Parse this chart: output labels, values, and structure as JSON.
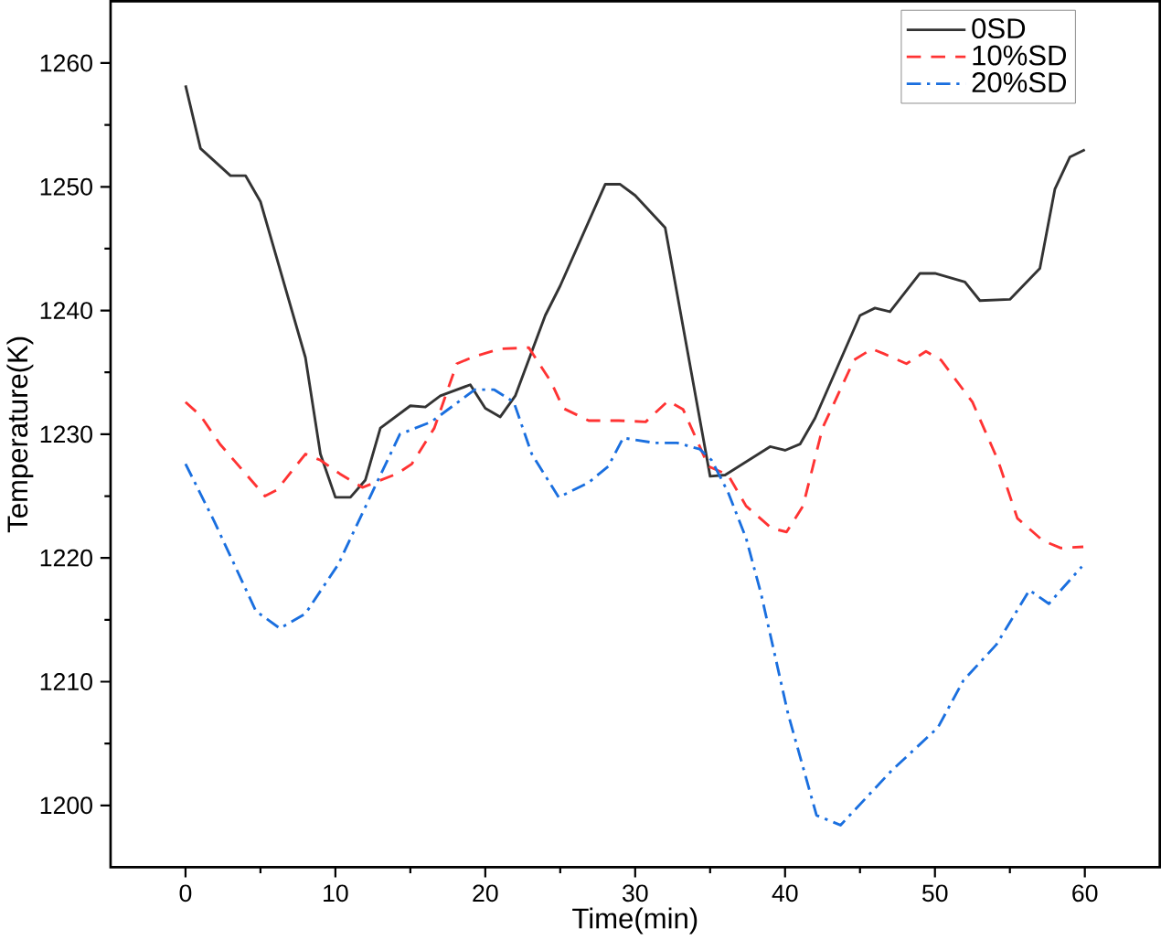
{
  "chart_data": {
    "type": "line",
    "xlabel": "Time(min)",
    "ylabel": "Temperature(K)",
    "xlim": [
      -5,
      65
    ],
    "ylim": [
      1195,
      1265
    ],
    "xticks": [
      0,
      10,
      20,
      30,
      40,
      50,
      60
    ],
    "yticks": [
      1200,
      1210,
      1220,
      1230,
      1240,
      1250,
      1260
    ],
    "grid": false,
    "legend": "top right",
    "series": [
      {
        "name": "0SD",
        "color": "#333333",
        "line_style": "solid",
        "x": [
          0,
          1,
          3,
          4,
          5,
          8,
          9,
          10,
          11,
          12,
          13,
          15,
          16,
          17,
          19,
          20,
          21,
          22,
          24,
          25,
          28,
          29,
          30,
          32,
          35,
          36,
          39,
          40,
          41,
          42,
          45,
          46,
          47,
          49,
          50,
          52,
          53,
          55,
          57,
          58,
          59,
          60
        ],
        "values": [
          1258.2,
          1253.1,
          1250.9,
          1250.9,
          1248.8,
          1236.2,
          1228.4,
          1224.9,
          1224.9,
          1226.3,
          1230.5,
          1232.3,
          1232.2,
          1233.1,
          1234.0,
          1232.1,
          1231.4,
          1233.1,
          1239.6,
          1242.0,
          1250.2,
          1250.2,
          1249.3,
          1246.7,
          1226.6,
          1226.7,
          1229.0,
          1228.7,
          1229.2,
          1231.3,
          1239.6,
          1240.2,
          1239.9,
          1243.0,
          1243.0,
          1242.3,
          1240.8,
          1240.9,
          1243.4,
          1249.8,
          1252.4,
          1253.0
        ]
      },
      {
        "name": "10%SD",
        "color": "#ff3333",
        "line_style": "dashed",
        "x": [
          0,
          1,
          2.3,
          5.3,
          6.1,
          8,
          9,
          10.3,
          11.8,
          14.1,
          15.1,
          16.6,
          18.1,
          19.3,
          21,
          22.9,
          24.4,
          25.2,
          26.9,
          28.9,
          30.7,
          32.2,
          33.2,
          34.9,
          36.2,
          37.4,
          39.1,
          40.1,
          41.2,
          42.5,
          44.6,
          45.8,
          46.6,
          48.1,
          49.4,
          50.4,
          52.5,
          54.2,
          55.5,
          57.2,
          58.4,
          59.9
        ],
        "values": [
          1232.6,
          1231.5,
          1229.2,
          1225.0,
          1225.5,
          1228.4,
          1227.9,
          1226.8,
          1225.7,
          1226.8,
          1227.6,
          1230.5,
          1235.7,
          1236.3,
          1236.9,
          1237.0,
          1234.2,
          1232.1,
          1231.1,
          1231.1,
          1231.0,
          1232.7,
          1232.0,
          1227.4,
          1226.7,
          1224.2,
          1222.4,
          1222.1,
          1224.2,
          1230.5,
          1236.0,
          1236.9,
          1236.5,
          1235.7,
          1236.7,
          1236.0,
          1232.6,
          1227.9,
          1223.2,
          1221.4,
          1220.8,
          1220.9
        ]
      },
      {
        "name": "20%SD",
        "color": "#1a6fdf",
        "line_style": "dashdotted",
        "x": [
          0,
          1.9,
          4.7,
          6.3,
          8,
          10.2,
          12.3,
          14.3,
          16.4,
          19.3,
          20.6,
          21.9,
          23.1,
          24.9,
          26.9,
          28.2,
          29.2,
          31.3,
          32.8,
          34.3,
          35.1,
          36.2,
          37.4,
          38.4,
          40.2,
          42.1,
          43.7,
          47.1,
          50.2,
          51.9,
          54.1,
          56.3,
          57.6,
          59.8
        ],
        "values": [
          1227.6,
          1223.0,
          1215.7,
          1214.3,
          1215.5,
          1219.5,
          1224.9,
          1230.0,
          1231.0,
          1233.6,
          1233.6,
          1232.6,
          1228.4,
          1224.9,
          1226.1,
          1227.4,
          1229.7,
          1229.3,
          1229.3,
          1228.8,
          1227.9,
          1225.3,
          1221.6,
          1217.1,
          1207.4,
          1199.2,
          1198.4,
          1202.8,
          1206.3,
          1210.1,
          1213.0,
          1217.4,
          1216.3,
          1219.3
        ]
      }
    ]
  }
}
